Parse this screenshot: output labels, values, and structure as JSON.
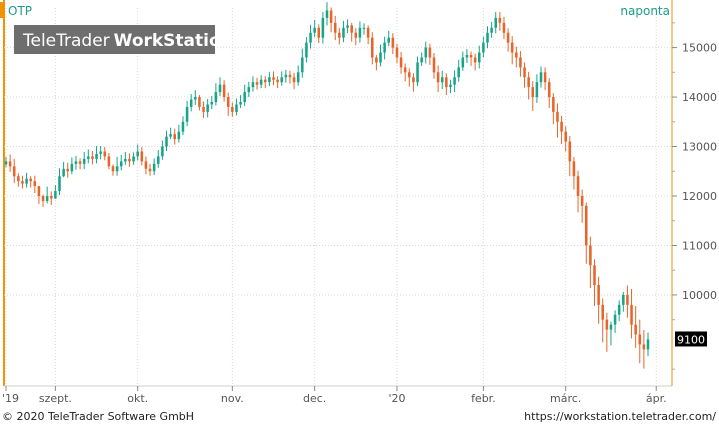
{
  "header": {
    "symbol": "OTP",
    "period": "naponta",
    "watermark_brand": "TeleTrader",
    "watermark_product": "WorkStation"
  },
  "footer": {
    "copyright": "© 2020 TeleTrader Software GmbH",
    "url": "https://workstation.teletrader.com/"
  },
  "colors": {
    "up": "#17a589",
    "down": "#e8642a",
    "accent": "#f39200",
    "grid": "#d9d9d9",
    "last_bg": "#000000"
  },
  "chart_data": {
    "type": "candlestick",
    "symbol": "OTP",
    "period": "naponta",
    "ylim": [
      8200,
      15800
    ],
    "y_ticks": [
      10000,
      11000,
      12000,
      13000,
      14000,
      15000
    ],
    "y_tick_labels": [
      "10000",
      "11000",
      "12000",
      "13000",
      "14000",
      "15000"
    ],
    "last_value": "9100",
    "x_month_labels": [
      {
        "label": "'19",
        "index": 0
      },
      {
        "label": "szept.",
        "index": 12
      },
      {
        "label": "okt.",
        "index": 32
      },
      {
        "label": "nov.",
        "index": 55
      },
      {
        "label": "dec.",
        "index": 75
      },
      {
        "label": "'20",
        "index": 95
      },
      {
        "label": "febr.",
        "index": 116
      },
      {
        "label": "márc.",
        "index": 136
      },
      {
        "label": "ápr.",
        "index": 158
      }
    ],
    "close": [
      12700,
      12600,
      12400,
      12300,
      12250,
      12350,
      12300,
      12200,
      12000,
      11900,
      12000,
      11950,
      12100,
      12400,
      12550,
      12500,
      12650,
      12700,
      12650,
      12750,
      12800,
      12750,
      12850,
      12900,
      12800,
      12600,
      12500,
      12600,
      12700,
      12750,
      12700,
      12800,
      12900,
      12700,
      12550,
      12500,
      12650,
      12800,
      13000,
      13200,
      13250,
      13150,
      13300,
      13500,
      13800,
      13950,
      14000,
      13800,
      13700,
      13850,
      13900,
      14100,
      14250,
      14000,
      13800,
      13700,
      13850,
      13900,
      14100,
      14200,
      14300,
      14250,
      14350,
      14300,
      14400,
      14350,
      14300,
      14400,
      14450,
      14400,
      14300,
      14500,
      14800,
      15100,
      15300,
      15400,
      15200,
      15600,
      15750,
      15500,
      15300,
      15200,
      15400,
      15450,
      15300,
      15200,
      15400,
      15400,
      15200,
      14800,
      14700,
      14900,
      15100,
      15200,
      15000,
      14800,
      14600,
      14500,
      14400,
      14300,
      14700,
      14800,
      15000,
      14800,
      14500,
      14300,
      14400,
      14200,
      14250,
      14400,
      14600,
      14800,
      14850,
      14800,
      14700,
      14900,
      15100,
      15300,
      15400,
      15600,
      15500,
      15300,
      15100,
      14900,
      14800,
      14600,
      14400,
      14200,
      14000,
      14300,
      14500,
      14300,
      14000,
      13700,
      13500,
      13300,
      13100,
      12700,
      12400,
      12000,
      11800,
      11000,
      10600,
      10200,
      9800,
      9500,
      9300,
      9400,
      9600,
      9800,
      10000,
      9800,
      9400,
      9200,
      9000,
      8900,
      9100
    ],
    "high": [
      12790,
      12840,
      12750,
      12460,
      12410,
      12470,
      12400,
      12410,
      12200,
      12030,
      12190,
      12090,
      12220,
      12560,
      12690,
      12670,
      12780,
      12810,
      12760,
      12890,
      12940,
      12910,
      13010,
      13010,
      12990,
      12870,
      12640,
      12790,
      12830,
      12890,
      12860,
      12880,
      13040,
      12990,
      12800,
      12650,
      12760,
      12930,
      13120,
      13320,
      13380,
      13360,
      13440,
      13610,
      13920,
      14060,
      14140,
      14040,
      13910,
      13960,
      14020,
      14280,
      14400,
      14340,
      14090,
      13890,
      13970,
      14040,
      14250,
      14310,
      14420,
      14390,
      14440,
      14420,
      14510,
      14520,
      14420,
      14520,
      14550,
      14530,
      14490,
      14640,
      14980,
      15210,
      15460,
      15560,
      15470,
      15720,
      15920,
      15810,
      15640,
      15400,
      15540,
      15570,
      15500,
      15390,
      15530,
      15490,
      15450,
      15310,
      14850,
      15060,
      15220,
      15340,
      15290,
      15080,
      14910,
      14680,
      14580,
      14480,
      14820,
      14900,
      15120,
      15080,
      14890,
      14640,
      14530,
      14480,
      14350,
      14540,
      14750,
      14920,
      14970,
      14920,
      14880,
      15040,
      15220,
      15430,
      15520,
      15720,
      15720,
      15620,
      15390,
      15230,
      15020,
      14930,
      14700,
      14510,
      14320,
      14460,
      14620,
      14600,
      14380,
      14080,
      13870,
      13620,
      13410,
      13210,
      12790,
      12510,
      12130,
      11870,
      11180,
      10720,
      10370,
      9930,
      9640,
      9460,
      9690,
      9890,
      10060,
      10190,
      10120,
      9780,
      9500,
      9290,
      9240
    ],
    "low": [
      12580,
      12490,
      12260,
      12190,
      12150,
      12170,
      12170,
      12060,
      11840,
      11780,
      11850,
      11820,
      11940,
      12020,
      12380,
      12370,
      12440,
      12530,
      12540,
      12540,
      12660,
      12640,
      12660,
      12740,
      12720,
      12540,
      12410,
      12410,
      12520,
      12630,
      12590,
      12630,
      12720,
      12620,
      12440,
      12410,
      12420,
      12570,
      12730,
      12910,
      13150,
      13040,
      13080,
      13230,
      13410,
      13710,
      13840,
      13730,
      13580,
      13590,
      13760,
      13830,
      14020,
      13910,
      13620,
      13600,
      13630,
      13780,
      13820,
      14000,
      14110,
      14150,
      14180,
      14180,
      14220,
      14240,
      14180,
      14230,
      14290,
      14270,
      14160,
      14230,
      14390,
      14700,
      14980,
      15210,
      15090,
      15080,
      15450,
      15310,
      15150,
      15060,
      15110,
      15290,
      15120,
      15050,
      15100,
      15260,
      15070,
      14660,
      14540,
      14620,
      14760,
      15030,
      14870,
      14680,
      14470,
      14320,
      14210,
      14110,
      14220,
      14630,
      14680,
      14650,
      14370,
      14100,
      14160,
      14040,
      14080,
      14100,
      14310,
      14530,
      14690,
      14630,
      14540,
      14580,
      14800,
      14990,
      15200,
      15290,
      15340,
      15170,
      14920,
      14660,
      14600,
      14410,
      14190,
      13950,
      13720,
      13880,
      14190,
      14140,
      13780,
      13450,
      13180,
      13050,
      12900,
      12400,
      12130,
      11670,
      11460,
      10630,
      10140,
      9780,
      9420,
      9040,
      8850,
      8980,
      9230,
      9470,
      9660,
      9540,
      9120,
      8930,
      8620,
      8510,
      8760
    ]
  }
}
